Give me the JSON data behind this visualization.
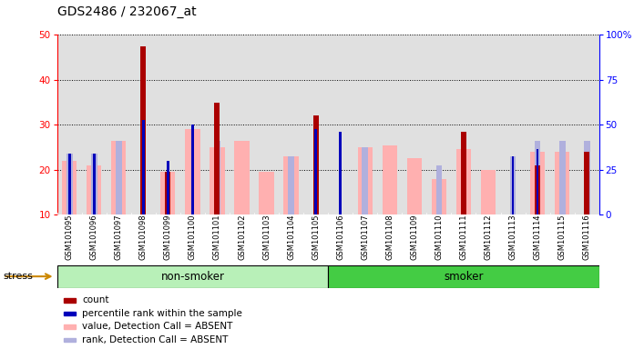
{
  "title": "GDS2486 / 232067_at",
  "samples": [
    "GSM101095",
    "GSM101096",
    "GSM101097",
    "GSM101098",
    "GSM101099",
    "GSM101100",
    "GSM101101",
    "GSM101102",
    "GSM101103",
    "GSM101104",
    "GSM101105",
    "GSM101106",
    "GSM101107",
    "GSM101108",
    "GSM101109",
    "GSM101110",
    "GSM101111",
    "GSM101112",
    "GSM101113",
    "GSM101114",
    "GSM101115",
    "GSM101116"
  ],
  "count": [
    null,
    null,
    null,
    47.5,
    19.5,
    null,
    35.0,
    null,
    null,
    null,
    32.0,
    null,
    null,
    null,
    null,
    null,
    28.5,
    null,
    null,
    21.0,
    null,
    24.0
  ],
  "percentile_rank": [
    23.5,
    23.5,
    null,
    31.0,
    22.0,
    30.0,
    null,
    null,
    null,
    null,
    29.0,
    28.5,
    null,
    null,
    null,
    null,
    null,
    null,
    23.0,
    24.5,
    null,
    null
  ],
  "value_absent": [
    22.0,
    21.0,
    26.5,
    null,
    19.5,
    29.0,
    25.0,
    26.5,
    19.5,
    23.0,
    null,
    null,
    25.0,
    25.5,
    22.5,
    18.0,
    24.5,
    20.0,
    null,
    24.0,
    24.0,
    null
  ],
  "rank_absent": [
    23.5,
    23.5,
    26.5,
    null,
    null,
    null,
    26.5,
    null,
    null,
    23.0,
    null,
    null,
    25.0,
    null,
    null,
    21.0,
    27.0,
    null,
    23.0,
    26.5,
    26.5,
    26.5
  ],
  "ylim_left": [
    10,
    50
  ],
  "ylim_right": [
    0,
    100
  ],
  "yticks_left": [
    10,
    20,
    30,
    40,
    50
  ],
  "yticks_right": [
    0,
    25,
    50,
    75,
    100
  ],
  "bg_color": "#e0e0e0",
  "bar_color_count": "#aa0000",
  "bar_color_percentile": "#0000bb",
  "bar_color_value_absent": "#ffb0b0",
  "bar_color_rank_absent": "#b0b0dd",
  "non_smoker_color": "#b8f0b8",
  "smoker_color": "#44cc44",
  "non_smoker_count": 11,
  "smoker_count": 11
}
